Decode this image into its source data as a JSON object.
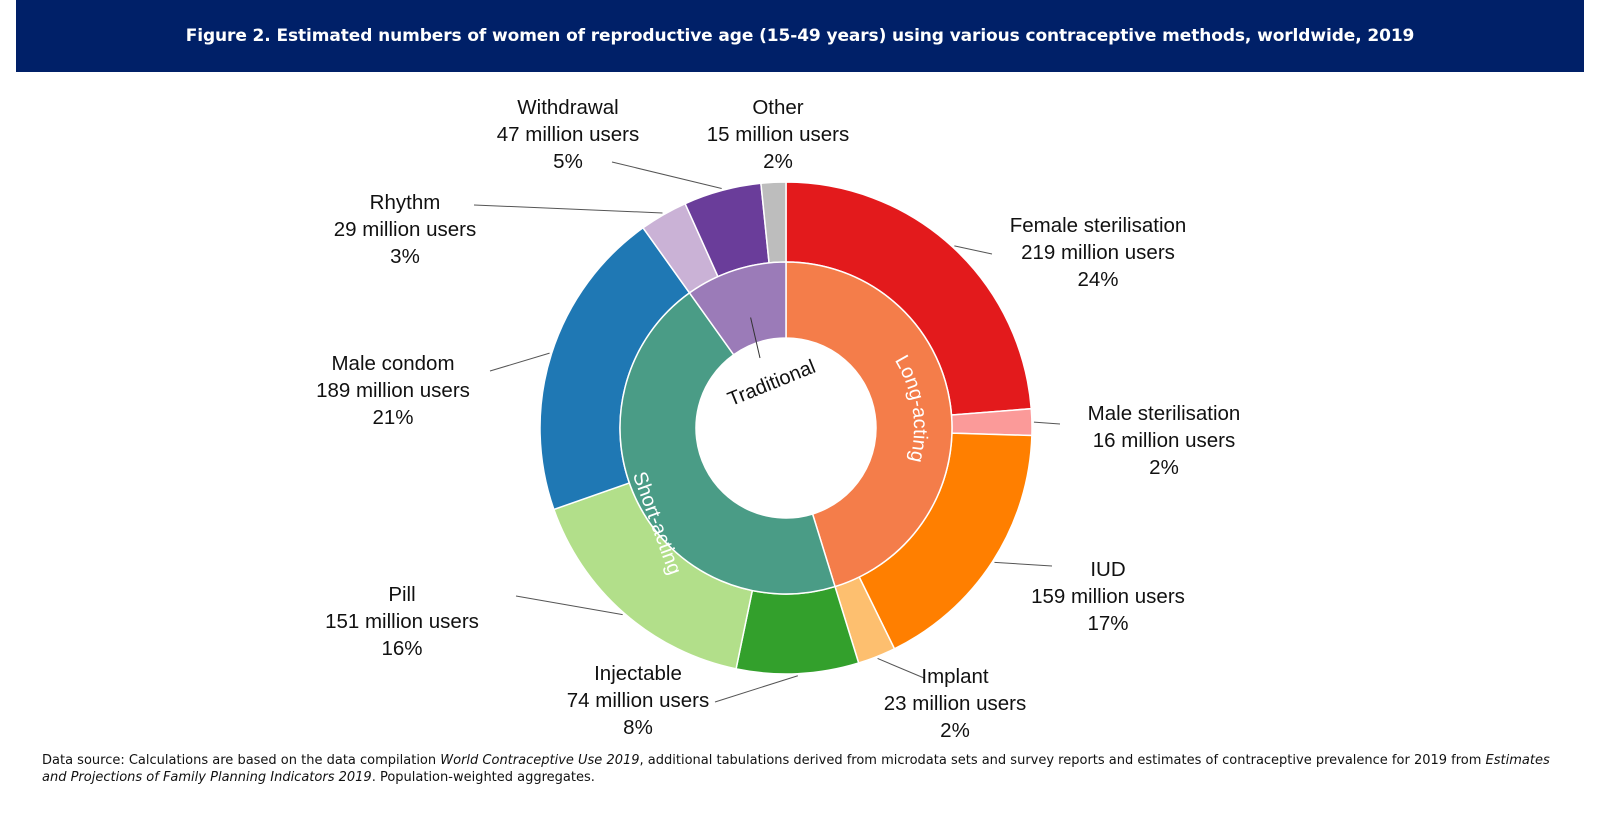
{
  "title": "Figure 2. Estimated numbers of women of reproductive age (15-49 years) using various contraceptive methods, worldwide, 2019",
  "colors": {
    "banner": "#002068",
    "title_text": "#ffffff"
  },
  "source": {
    "prefix": "Data source: Calculations are based on the data compilation ",
    "work1": "World Contraceptive Use 2019",
    "middle": ", additional tabulations derived from microdata sets and survey reports and estimates of contraceptive prevalence for 2019 from ",
    "work2": "Estimates and Projections of Family Planning Indicators 2019",
    "suffix": ". Population-weighted aggregates."
  },
  "chart_data": {
    "type": "pie",
    "variant": "nested-donut",
    "unit": "million users",
    "outer": [
      {
        "name": "Female sterilisation",
        "value": 219,
        "users_label": "219 million users",
        "pct_label": "24%",
        "color": "#e31a1c"
      },
      {
        "name": "Male sterilisation",
        "value": 16,
        "users_label": "16 million users",
        "pct_label": "2%",
        "color": "#fb9a99"
      },
      {
        "name": "IUD",
        "value": 159,
        "users_label": "159 million users",
        "pct_label": "17%",
        "color": "#ff7f00"
      },
      {
        "name": "Implant",
        "value": 23,
        "users_label": "23 million users",
        "pct_label": "2%",
        "color": "#fdbf6f"
      },
      {
        "name": "Injectable",
        "value": 74,
        "users_label": "74 million users",
        "pct_label": "8%",
        "color": "#33a02c"
      },
      {
        "name": "Pill",
        "value": 151,
        "users_label": "151 million users",
        "pct_label": "16%",
        "color": "#b2df8a"
      },
      {
        "name": "Male condom",
        "value": 189,
        "users_label": "189 million users",
        "pct_label": "21%",
        "color": "#1f78b4"
      },
      {
        "name": "Rhythm",
        "value": 29,
        "users_label": "29 million users",
        "pct_label": "3%",
        "color": "#cab2d6"
      },
      {
        "name": "Withdrawal",
        "value": 47,
        "users_label": "47 million users",
        "pct_label": "5%",
        "color": "#6a3d9a"
      },
      {
        "name": "Other",
        "value": 15,
        "users_label": "15 million users",
        "pct_label": "2%",
        "color": "#bdbdbd"
      }
    ],
    "inner": [
      {
        "name": "Long-acting",
        "members": [
          "Female sterilisation",
          "Male sterilisation",
          "IUD",
          "Implant"
        ],
        "color": "#f47d4a",
        "text_color": "#ffffff"
      },
      {
        "name": "Short-acting",
        "members": [
          "Injectable",
          "Pill",
          "Male condom"
        ],
        "color": "#4a9c86",
        "text_color": "#ffffff"
      },
      {
        "name": "Traditional",
        "members": [
          "Rhythm",
          "Withdrawal",
          "Other"
        ],
        "color": "#9b7bb8",
        "text_color": "#111111"
      }
    ]
  }
}
